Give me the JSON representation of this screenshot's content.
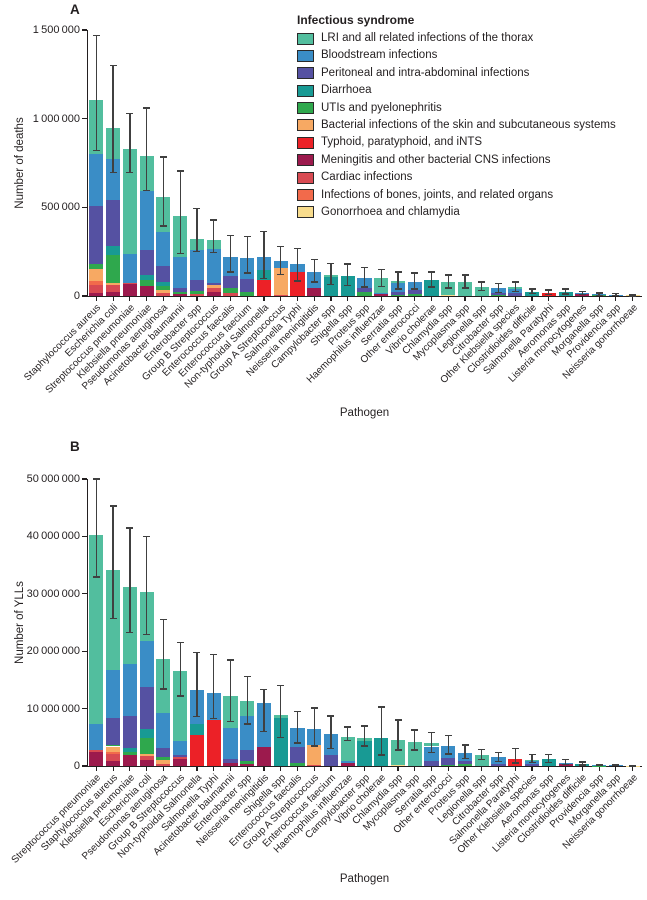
{
  "figure": {
    "panels": [
      {
        "letter": "A"
      },
      {
        "letter": "B"
      }
    ]
  },
  "legend": {
    "title": "Infectious syndrome",
    "items": [
      {
        "key": "lri",
        "label": "LRI and all related infections of the thorax",
        "color": "#52be9e"
      },
      {
        "key": "bsi",
        "label": "Bloodstream infections",
        "color": "#3a8dc6"
      },
      {
        "key": "iaa",
        "label": "Peritoneal and intra-abdominal infections",
        "color": "#5551a2"
      },
      {
        "key": "dia",
        "label": "Diarrhoea",
        "color": "#189a94"
      },
      {
        "key": "uti",
        "label": "UTIs and pyelonephritis",
        "color": "#2fa84d"
      },
      {
        "key": "skin",
        "label": "Bacterial infections of the skin and subcutaneous systems",
        "color": "#f7a963"
      },
      {
        "key": "typ",
        "label": "Typhoid, paratyphoid, and iNTS",
        "color": "#ec2127"
      },
      {
        "key": "cns",
        "label": "Meningitis and other bacterial CNS infections",
        "color": "#9c1a4d"
      },
      {
        "key": "card",
        "label": "Cardiac infections",
        "color": "#d84a52"
      },
      {
        "key": "bone",
        "label": "Infections of bones, joints, and related organs",
        "color": "#f26a4b"
      },
      {
        "key": "gon",
        "label": "Gonorrhoea and chlamydia",
        "color": "#f8dc8d"
      }
    ]
  },
  "chart_data": [
    {
      "type": "bar",
      "stacked": true,
      "panel": "A",
      "ylabel": "Number of deaths",
      "xlabel": "Pathogen",
      "ylim": [
        0,
        1500000
      ],
      "grid": false,
      "error_bars": true,
      "legend_position": "top-right",
      "yticks": [
        {
          "value": 0,
          "label": "0"
        },
        {
          "value": 500000,
          "label": "500 000"
        },
        {
          "value": 1000000,
          "label": "1 000 000"
        },
        {
          "value": 1500000,
          "label": "1 500 000"
        }
      ],
      "bars": [
        {
          "pathogen": "Staphylococcus aureus",
          "total": 1105000,
          "lo": 820000,
          "hi": 1470000,
          "segments": {
            "cns": 15000,
            "card": 45000,
            "bone": 25000,
            "skin": 65000,
            "uti": 30000,
            "iaa": 330000,
            "bsi": 290000,
            "lri": 305000
          }
        },
        {
          "pathogen": "Escherichia coli",
          "total": 950000,
          "lo": 695000,
          "hi": 1300000,
          "segments": {
            "cns": 25000,
            "card": 35000,
            "skin": 15000,
            "uti": 155000,
            "dia": 50000,
            "iaa": 260000,
            "bsi": 230000,
            "lri": 180000
          }
        },
        {
          "pathogen": "Streptococcus pneumoniae",
          "total": 829000,
          "lo": 695000,
          "hi": 1030000,
          "segments": {
            "cns": 65000,
            "card": 10000,
            "bsi": 160000,
            "lri": 594000
          }
        },
        {
          "pathogen": "Klebsiella pneumoniae",
          "total": 790000,
          "lo": 595000,
          "hi": 1060000,
          "segments": {
            "cns": 55000,
            "uti": 35000,
            "dia": 30000,
            "iaa": 140000,
            "bsi": 330000,
            "lri": 200000
          }
        },
        {
          "pathogen": "Pseudomonas aeruginosa",
          "total": 559000,
          "lo": 395000,
          "hi": 785000,
          "segments": {
            "card": 15000,
            "skin": 19000,
            "uti": 25000,
            "dia": 20000,
            "iaa": 90000,
            "bsi": 190000,
            "lri": 200000
          }
        },
        {
          "pathogen": "Acinetobacter baumannii",
          "total": 452000,
          "lo": 240000,
          "hi": 705000,
          "segments": {
            "cns": 12000,
            "uti": 10000,
            "iaa": 25000,
            "bsi": 175000,
            "lri": 230000
          }
        },
        {
          "pathogen": "Enterobacter spp",
          "total": 320000,
          "lo": 250000,
          "hi": 495000,
          "segments": {
            "card": 10000,
            "uti": 20000,
            "iaa": 60000,
            "bsi": 170000,
            "lri": 60000
          }
        },
        {
          "pathogen": "Group B Streptococcus",
          "total": 318000,
          "lo": 245000,
          "hi": 430000,
          "segments": {
            "cns": 25000,
            "card": 18000,
            "skin": 20000,
            "iaa": 10000,
            "bsi": 190000,
            "lri": 55000
          }
        },
        {
          "pathogen": "Enterococcus faecalis",
          "total": 220000,
          "lo": 135000,
          "hi": 340000,
          "segments": {
            "card": 15000,
            "uti": 30000,
            "iaa": 70000,
            "bsi": 105000
          }
        },
        {
          "pathogen": "Enterococcus faecium",
          "total": 215000,
          "lo": 130000,
          "hi": 335000,
          "segments": {
            "uti": 20000,
            "iaa": 75000,
            "bsi": 120000
          }
        },
        {
          "pathogen": "Non-typhoidal Salmonella",
          "total": 218000,
          "lo": 100000,
          "hi": 365000,
          "segments": {
            "typ": 90000,
            "dia": 58000,
            "bsi": 70000
          }
        },
        {
          "pathogen": "Group A Streptococcus",
          "total": 195000,
          "lo": 120000,
          "hi": 280000,
          "segments": {
            "card": 8000,
            "skin": 148000,
            "bsi": 39000
          }
        },
        {
          "pathogen": "Salmonella Typhi",
          "total": 180000,
          "lo": 85000,
          "hi": 270000,
          "segments": {
            "typ": 135000,
            "bsi": 45000
          }
        },
        {
          "pathogen": "Neisseria meningitidis",
          "total": 135000,
          "lo": 80000,
          "hi": 205000,
          "segments": {
            "cns": 48000,
            "bsi": 87000
          }
        },
        {
          "pathogen": "Campylobacter spp",
          "total": 119000,
          "lo": 65000,
          "hi": 185000,
          "segments": {
            "dia": 110000,
            "lri": 9000
          }
        },
        {
          "pathogen": "Shigella spp",
          "total": 115000,
          "lo": 60000,
          "hi": 180000,
          "segments": {
            "dia": 115000
          }
        },
        {
          "pathogen": "Proteus spp",
          "total": 100000,
          "lo": 50000,
          "hi": 160000,
          "segments": {
            "uti": 25000,
            "iaa": 20000,
            "bsi": 55000
          }
        },
        {
          "pathogen": "Haemophilus influenzae",
          "total": 100000,
          "lo": 55000,
          "hi": 150000,
          "segments": {
            "cns": 10000,
            "bsi": 8000,
            "lri": 82000
          }
        },
        {
          "pathogen": "Serratia spp",
          "total": 85000,
          "lo": 40000,
          "hi": 135000,
          "segments": {
            "uti": 5000,
            "iaa": 20000,
            "bsi": 50000,
            "lri": 10000
          }
        },
        {
          "pathogen": "Other enterococci",
          "total": 80000,
          "lo": 40000,
          "hi": 130000,
          "segments": {
            "uti": 10000,
            "iaa": 25000,
            "bsi": 45000
          }
        },
        {
          "pathogen": "Vibrio cholerae",
          "total": 91000,
          "lo": 50000,
          "hi": 135000,
          "segments": {
            "dia": 91000
          }
        },
        {
          "pathogen": "Chlamydia spp",
          "total": 81000,
          "lo": 45000,
          "hi": 120000,
          "segments": {
            "gon": 3000,
            "lri": 78000
          }
        },
        {
          "pathogen": "Mycoplasma spp",
          "total": 80000,
          "lo": 45000,
          "hi": 120000,
          "segments": {
            "lri": 80000
          }
        },
        {
          "pathogen": "Legionella spp",
          "total": 53000,
          "lo": 30000,
          "hi": 80000,
          "segments": {
            "lri": 53000
          }
        },
        {
          "pathogen": "Citrobacter spp",
          "total": 44000,
          "lo": 20000,
          "hi": 70000,
          "segments": {
            "uti": 7000,
            "iaa": 12000,
            "bsi": 25000
          }
        },
        {
          "pathogen": "Other Klebsiella species",
          "total": 49000,
          "lo": 25000,
          "hi": 80000,
          "segments": {
            "iaa": 15000,
            "bsi": 25000,
            "lri": 9000
          }
        },
        {
          "pathogen": "Clostridioides difficile",
          "total": 24000,
          "lo": 15000,
          "hi": 40000,
          "segments": {
            "dia": 24000
          }
        },
        {
          "pathogen": "Salmonella Paratyphi",
          "total": 19000,
          "lo": 8000,
          "hi": 35000,
          "segments": {
            "typ": 19000
          }
        },
        {
          "pathogen": "Aeromonas spp",
          "total": 24000,
          "lo": 12000,
          "hi": 40000,
          "segments": {
            "dia": 24000
          }
        },
        {
          "pathogen": "Listeria monocytogenes",
          "total": 15000,
          "lo": 8000,
          "hi": 25000,
          "segments": {
            "cns": 9000,
            "bsi": 6000
          }
        },
        {
          "pathogen": "Morganella spp",
          "total": 10000,
          "lo": 4000,
          "hi": 18000,
          "segments": {
            "uti": 4000,
            "bsi": 6000
          }
        },
        {
          "pathogen": "Providencia spp",
          "total": 8000,
          "lo": 3000,
          "hi": 15000,
          "segments": {
            "uti": 3000,
            "bsi": 5000
          }
        },
        {
          "pathogen": "Neisseria gonorrhoeae",
          "total": 3000,
          "lo": 1000,
          "hi": 6000,
          "segments": {
            "gon": 3000
          }
        }
      ]
    },
    {
      "type": "bar",
      "stacked": true,
      "panel": "B",
      "ylabel": "Number of YLLs",
      "xlabel": "Pathogen",
      "ylim": [
        0,
        50000000
      ],
      "grid": false,
      "error_bars": true,
      "legend_position": "none",
      "yticks": [
        {
          "value": 0,
          "label": "0"
        },
        {
          "value": 10000000,
          "label": "10 000 000"
        },
        {
          "value": 20000000,
          "label": "20 000 000"
        },
        {
          "value": 30000000,
          "label": "30 000 000"
        },
        {
          "value": 40000000,
          "label": "40 000 000"
        },
        {
          "value": 50000000,
          "label": "50 000 000"
        }
      ],
      "bars": [
        {
          "pathogen": "Streptococcus pneumoniae",
          "total": 40300000,
          "lo": 32900000,
          "hi": 50000000,
          "segments": {
            "cns": 2500000,
            "card": 300000,
            "bsi": 4500000,
            "lri": 33000000
          }
        },
        {
          "pathogen": "Staphylococcus aureus",
          "total": 34200000,
          "lo": 25700000,
          "hi": 45300000,
          "segments": {
            "cns": 900000,
            "card": 1200000,
            "bone": 400000,
            "skin": 900000,
            "uti": 300000,
            "iaa": 4600000,
            "bsi": 8400000,
            "lri": 17500000
          }
        },
        {
          "pathogen": "Klebsiella pneumoniae",
          "total": 31200000,
          "lo": 23300000,
          "hi": 41500000,
          "segments": {
            "cns": 2000000,
            "dia": 700000,
            "uti": 500000,
            "iaa": 5600000,
            "bsi": 9000000,
            "lri": 13400000
          }
        },
        {
          "pathogen": "Escherichia coli",
          "total": 30300000,
          "lo": 22900000,
          "hi": 40000000,
          "segments": {
            "cns": 1000000,
            "card": 800000,
            "skin": 300000,
            "uti": 2700000,
            "dia": 1700000,
            "iaa": 7300000,
            "bsi": 8000000,
            "lri": 8500000
          }
        },
        {
          "pathogen": "Pseudomonas aeruginosa",
          "total": 18700000,
          "lo": 13400000,
          "hi": 25500000,
          "segments": {
            "card": 400000,
            "skin": 600000,
            "uti": 600000,
            "iaa": 1600000,
            "bsi": 6000000,
            "lri": 9500000
          }
        },
        {
          "pathogen": "Group B Streptococcus",
          "total": 16500000,
          "lo": 12200000,
          "hi": 21500000,
          "segments": {
            "cns": 1200000,
            "card": 300000,
            "iaa": 500000,
            "bsi": 2400000,
            "lri": 12100000
          }
        },
        {
          "pathogen": "Non-typhoidal Salmonella",
          "total": 13300000,
          "lo": 8600000,
          "hi": 19800000,
          "segments": {
            "typ": 5400000,
            "dia": 2000000,
            "bsi": 5900000
          }
        },
        {
          "pathogen": "Salmonella Typhi",
          "total": 12700000,
          "lo": 8300000,
          "hi": 19400000,
          "segments": {
            "typ": 8000000,
            "bsi": 4700000
          }
        },
        {
          "pathogen": "Acinetobacter baumannii",
          "total": 12200000,
          "lo": 7700000,
          "hi": 18500000,
          "segments": {
            "cns": 500000,
            "iaa": 700000,
            "bsi": 5500000,
            "lri": 5500000
          }
        },
        {
          "pathogen": "Enterobacter spp",
          "total": 11300000,
          "lo": 7300000,
          "hi": 15600000,
          "segments": {
            "cns": 400000,
            "uti": 400000,
            "iaa": 2000000,
            "bsi": 6000000,
            "lri": 2500000
          }
        },
        {
          "pathogen": "Neisseria meningitidis",
          "total": 10900000,
          "lo": 6000000,
          "hi": 13300000,
          "segments": {
            "cns": 3300000,
            "bsi": 7600000
          }
        },
        {
          "pathogen": "Shigella spp",
          "total": 8900000,
          "lo": 5000000,
          "hi": 14000000,
          "segments": {
            "dia": 8400000,
            "lri": 500000
          }
        },
        {
          "pathogen": "Enterococcus faecalis",
          "total": 6600000,
          "lo": 4000000,
          "hi": 9500000,
          "segments": {
            "uti": 500000,
            "iaa": 2800000,
            "bsi": 3300000
          }
        },
        {
          "pathogen": "Group A Streptococcus",
          "total": 6500000,
          "lo": 3500000,
          "hi": 10100000,
          "segments": {
            "card": 200000,
            "skin": 3400000,
            "bsi": 2900000
          }
        },
        {
          "pathogen": "Enterococcus faecium",
          "total": 5500000,
          "lo": 3100000,
          "hi": 8700000,
          "segments": {
            "iaa": 2000000,
            "bsi": 3500000
          }
        },
        {
          "pathogen": "Haemophilus influenzae",
          "total": 5100000,
          "lo": 4400000,
          "hi": 6800000,
          "segments": {
            "cns": 600000,
            "bsi": 300000,
            "lri": 4200000
          }
        },
        {
          "pathogen": "Campylobacter spp",
          "total": 4800000,
          "lo": 3500000,
          "hi": 7000000,
          "segments": {
            "dia": 4400000,
            "lri": 400000
          }
        },
        {
          "pathogen": "Vibrio cholerae",
          "total": 4800000,
          "lo": 1900000,
          "hi": 10300000,
          "segments": {
            "dia": 4800000
          }
        },
        {
          "pathogen": "Chlamydia spp",
          "total": 4500000,
          "lo": 2800000,
          "hi": 8000000,
          "segments": {
            "gon": 100000,
            "lri": 4400000
          }
        },
        {
          "pathogen": "Mycoplasma spp",
          "total": 4200000,
          "lo": 2800000,
          "hi": 6300000,
          "segments": {
            "lri": 4200000
          }
        },
        {
          "pathogen": "Serratia spp",
          "total": 4000000,
          "lo": 2400000,
          "hi": 5900000,
          "segments": {
            "iaa": 800000,
            "bsi": 2600000,
            "lri": 600000
          }
        },
        {
          "pathogen": "Other enterococci",
          "total": 3500000,
          "lo": 2100000,
          "hi": 5300000,
          "segments": {
            "uti": 200000,
            "iaa": 1200000,
            "bsi": 2100000
          }
        },
        {
          "pathogen": "Proteus spp",
          "total": 2300000,
          "lo": 1300000,
          "hi": 3700000,
          "segments": {
            "uti": 300000,
            "iaa": 500000,
            "bsi": 1500000
          }
        },
        {
          "pathogen": "Legionella spp",
          "total": 1900000,
          "lo": 1100000,
          "hi": 2900000,
          "segments": {
            "lri": 1900000
          }
        },
        {
          "pathogen": "Citrobacter spp",
          "total": 1500000,
          "lo": 800000,
          "hi": 2400000,
          "segments": {
            "iaa": 400000,
            "bsi": 1100000
          }
        },
        {
          "pathogen": "Salmonella Paratyphi",
          "total": 1200000,
          "lo": 500000,
          "hi": 3100000,
          "segments": {
            "typ": 1200000
          }
        },
        {
          "pathogen": "Other Klebsiella species",
          "total": 1100000,
          "lo": 600000,
          "hi": 2000000,
          "segments": {
            "iaa": 300000,
            "bsi": 600000,
            "lri": 200000
          }
        },
        {
          "pathogen": "Aeromonas spp",
          "total": 1200000,
          "lo": 600000,
          "hi": 2000000,
          "segments": {
            "dia": 1200000
          }
        },
        {
          "pathogen": "Listeria monocytogenes",
          "total": 600000,
          "lo": 300000,
          "hi": 1100000,
          "segments": {
            "cns": 400000,
            "bsi": 200000
          }
        },
        {
          "pathogen": "Clostridioides difficile",
          "total": 400000,
          "lo": 200000,
          "hi": 700000,
          "segments": {
            "dia": 400000
          }
        },
        {
          "pathogen": "Providencia spp",
          "total": 150000,
          "lo": 50000,
          "hi": 300000,
          "segments": {
            "uti": 50000,
            "bsi": 100000
          }
        },
        {
          "pathogen": "Morganella spp",
          "total": 120000,
          "lo": 50000,
          "hi": 250000,
          "segments": {
            "bsi": 120000
          }
        },
        {
          "pathogen": "Neisseria gonorrhoeae",
          "total": 50000,
          "lo": 20000,
          "hi": 100000,
          "segments": {
            "gon": 50000
          }
        }
      ]
    }
  ]
}
